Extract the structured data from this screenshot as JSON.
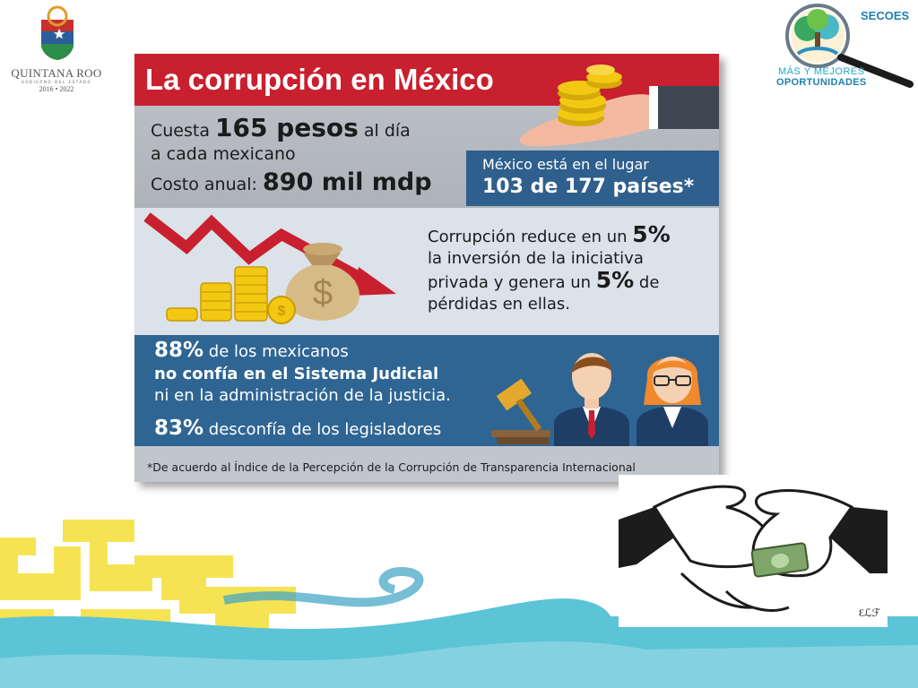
{
  "slide": {
    "logo_left": {
      "name": "QUINTANA ROO",
      "subtitle": "GOBIERNO DEL ESTADO",
      "years": "2016 • 2022"
    },
    "logo_right": {
      "brand": "SECOES",
      "tagline_line1": "MÁS Y MEJORES",
      "tagline_line2": "OPORTUNIDADES"
    },
    "infographic": {
      "title": "La corrupción en México",
      "cost": {
        "line1_prefix": "Cuesta ",
        "line1_value": "165 pesos",
        "line1_suffix": " al día",
        "line2": "a cada mexicano",
        "line3_prefix": "Costo anual: ",
        "line3_value": "890 mil mdp"
      },
      "rank": {
        "line1": "México está en el lugar",
        "line2": "103 de 177 países*"
      },
      "investment": {
        "part1": "Corrupción reduce en un ",
        "value1": "5%",
        "part2": "la inversión de la iniciativa",
        "part3": "privada y genera un ",
        "value2": "5%",
        "part4": " de",
        "part5": "pérdidas en ellas."
      },
      "trust": {
        "line1_value": "88%",
        "line1_suffix": " de los mexicanos",
        "line2": "no confía en el Sistema Judicial",
        "line3": "ni en la administración de la justicia.",
        "line4_value": "83%",
        "line4_suffix": " desconfía de los legisladores"
      },
      "footnote": "*De acuerdo al Índice de la Percepción de la Corrupción de Transparencia Internacional"
    },
    "colors": {
      "header_red": "#c8202e",
      "rank_blue": "#2f5f8d",
      "trust_blue": "#2e6593",
      "wave_cyan": "#5bc4d6",
      "pattern_yellow": "#f6e24b"
    },
    "icons": [
      "coins-icon",
      "hand-icon",
      "down-arrow-icon",
      "money-bag-icon",
      "gavel-icon",
      "businessman-icon",
      "businesswoman-icon",
      "handshake-bribe-icon"
    ]
  }
}
